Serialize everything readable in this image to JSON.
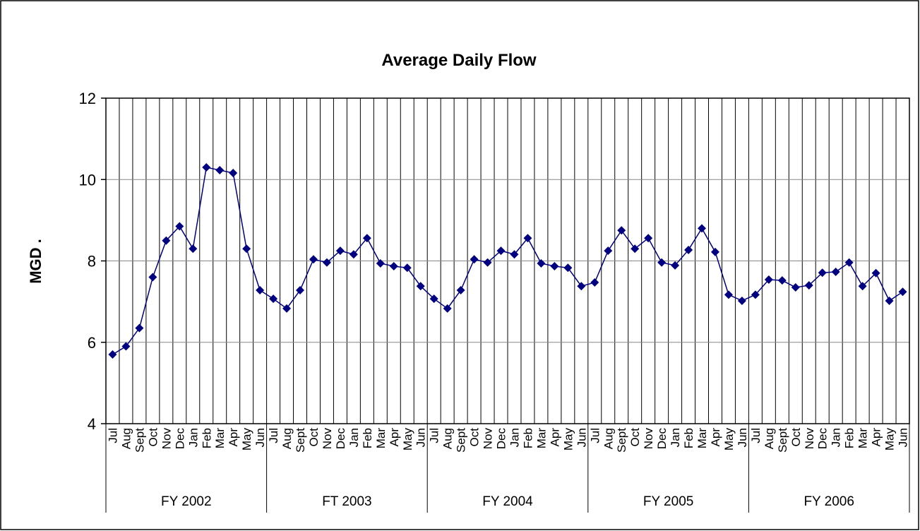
{
  "chart_data": {
    "type": "line",
    "title": "Average Daily Flow",
    "y_label": "MGD .",
    "categories": [
      "Jul",
      "Aug",
      "Sept",
      "Oct",
      "Nov",
      "Dec",
      "Jan",
      "Feb",
      "Mar",
      "Apr",
      "May",
      "Jun",
      "Jul",
      "Aug",
      "Sept",
      "Oct",
      "Nov",
      "Dec",
      "Jan",
      "Feb",
      "Mar",
      "Apr",
      "May",
      "Jun",
      "Jul",
      "Aug",
      "Sept",
      "Oct",
      "Nov",
      "Dec",
      "Jan",
      "Feb",
      "Mar",
      "Apr",
      "May",
      "Jun",
      "Jul",
      "Aug",
      "Sept",
      "Oct",
      "Nov",
      "Dec",
      "Jan",
      "Feb",
      "Mar",
      "Apr",
      "May",
      "Jun",
      "Jul",
      "Aug",
      "Sept",
      "Oct",
      "Nov",
      "Dec",
      "Jan",
      "Feb",
      "Mar",
      "Apr",
      "May",
      "Jun"
    ],
    "category_groups": [
      "FY 2002",
      "FT 2003",
      "FY 2004",
      "FY 2005",
      "FY 2006"
    ],
    "values": [
      5.7,
      5.9,
      6.35,
      7.6,
      8.5,
      8.85,
      8.3,
      10.3,
      10.23,
      10.16,
      8.3,
      7.28,
      7.07,
      6.83,
      7.28,
      8.04,
      7.96,
      8.25,
      8.16,
      8.56,
      7.94,
      7.87,
      7.83,
      7.38,
      7.07,
      6.83,
      7.28,
      8.04,
      7.96,
      8.25,
      8.16,
      8.56,
      7.94,
      7.87,
      7.83,
      7.38,
      7.47,
      8.25,
      8.75,
      8.3,
      8.56,
      7.96,
      7.89,
      8.27,
      8.8,
      8.22,
      7.17,
      7.02,
      7.17,
      7.54,
      7.52,
      7.35,
      7.4,
      7.71,
      7.73,
      7.96,
      7.38,
      7.7,
      7.02,
      7.24
    ],
    "color": "#000080",
    "marker": "diamond",
    "ylim": [
      4,
      12
    ],
    "yticks": [
      4,
      6,
      8,
      10,
      12
    ],
    "grid": true
  }
}
